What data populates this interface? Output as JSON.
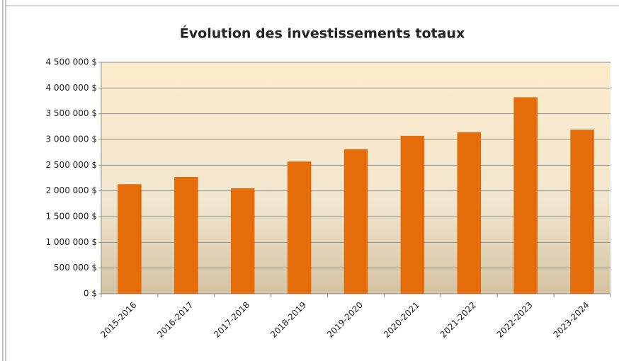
{
  "chart_data": {
    "type": "bar",
    "title": "Évolution des investissements totaux",
    "categories": [
      "2015-2016",
      "2016-2017",
      "2017-2018",
      "2018-2019",
      "2019-2020",
      "2020-2021",
      "2021-2022",
      "2022-2023",
      "2023-2024"
    ],
    "values": [
      2130000,
      2270000,
      2050000,
      2570000,
      2810000,
      3070000,
      3140000,
      3820000,
      3190000
    ],
    "color": "#e46c0a",
    "ylim": [
      0,
      4500000
    ],
    "yticks": [
      {
        "value": 0,
        "label": "0 $"
      },
      {
        "value": 500000,
        "label": "500 000 $"
      },
      {
        "value": 1000000,
        "label": "1 000 000 $"
      },
      {
        "value": 1500000,
        "label": "1 500 000 $"
      },
      {
        "value": 2000000,
        "label": "2 000 000 $"
      },
      {
        "value": 2500000,
        "label": "2 500 000 $"
      },
      {
        "value": 3000000,
        "label": "3 000 000 $"
      },
      {
        "value": 3500000,
        "label": "3 500 000 $"
      },
      {
        "value": 4000000,
        "label": "4 000 000 $"
      },
      {
        "value": 4500000,
        "label": "4 500 000 $"
      }
    ],
    "grid": true
  }
}
